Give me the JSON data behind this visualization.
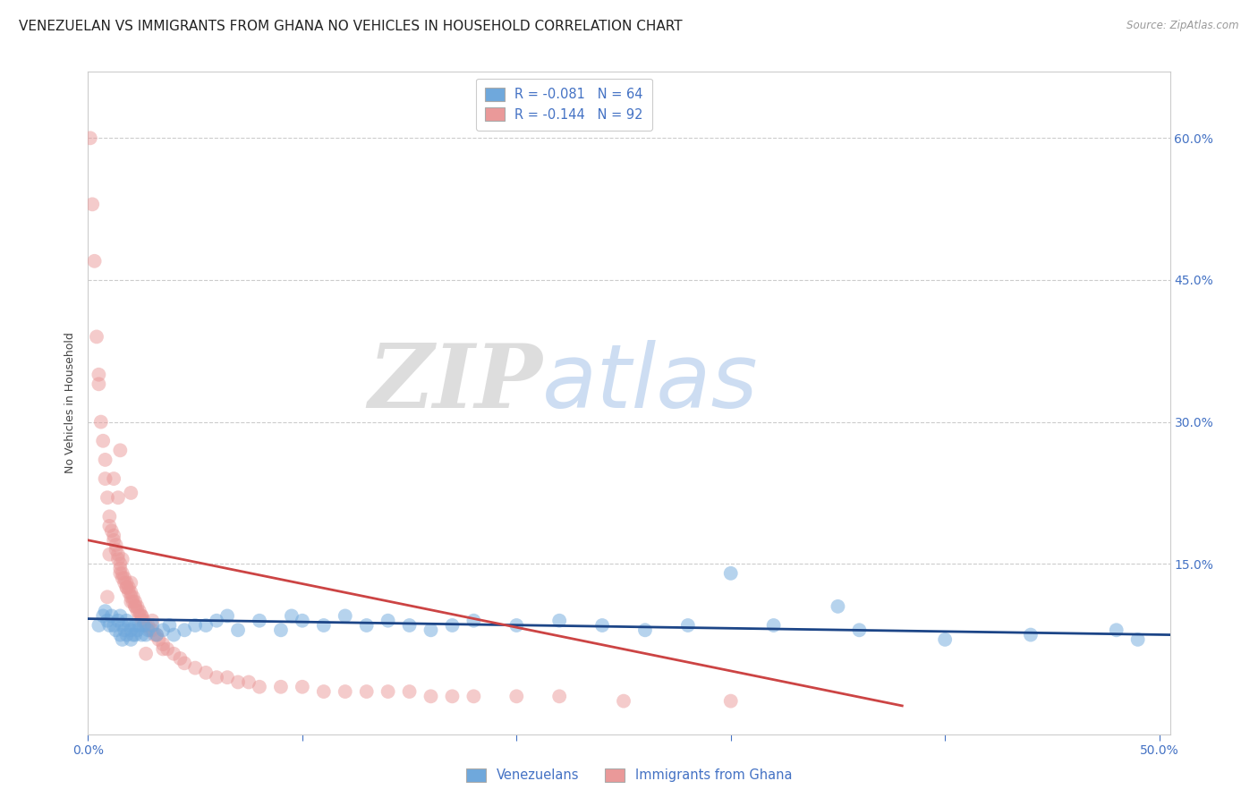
{
  "title": "VENEZUELAN VS IMMIGRANTS FROM GHANA NO VEHICLES IN HOUSEHOLD CORRELATION CHART",
  "source": "Source: ZipAtlas.com",
  "ylabel_left": "No Vehicles in Household",
  "xlim": [
    0.0,
    0.505
  ],
  "ylim": [
    -0.03,
    0.67
  ],
  "ytick_positions": [
    0.0,
    0.15,
    0.3,
    0.45,
    0.6
  ],
  "ytick_labels_right": [
    "",
    "15.0%",
    "30.0%",
    "45.0%",
    "60.0%"
  ],
  "xtick_positions": [
    0.0,
    0.1,
    0.2,
    0.3,
    0.4,
    0.5
  ],
  "xtick_labels": [
    "0.0%",
    "",
    "",
    "",
    "",
    "50.0%"
  ],
  "blue_color": "#6fa8dc",
  "pink_color": "#ea9999",
  "blue_line_color": "#1c4587",
  "pink_line_color": "#cc4444",
  "legend_r_blue": "R = -0.081",
  "legend_n_blue": "N = 64",
  "legend_r_pink": "R = -0.144",
  "legend_n_pink": "N = 92",
  "label_blue": "Venezuelans",
  "label_pink": "Immigrants from Ghana",
  "title_color": "#222222",
  "axis_color": "#4472c4",
  "watermark_zip": "ZIP",
  "watermark_atlas": "atlas",
  "blue_scatter_x": [
    0.005,
    0.007,
    0.008,
    0.009,
    0.01,
    0.011,
    0.012,
    0.013,
    0.014,
    0.015,
    0.015,
    0.016,
    0.016,
    0.017,
    0.018,
    0.018,
    0.019,
    0.02,
    0.02,
    0.021,
    0.022,
    0.022,
    0.023,
    0.024,
    0.025,
    0.026,
    0.027,
    0.028,
    0.03,
    0.032,
    0.035,
    0.038,
    0.04,
    0.045,
    0.05,
    0.055,
    0.06,
    0.065,
    0.07,
    0.08,
    0.09,
    0.095,
    0.1,
    0.11,
    0.12,
    0.13,
    0.14,
    0.15,
    0.16,
    0.17,
    0.18,
    0.2,
    0.22,
    0.24,
    0.26,
    0.28,
    0.32,
    0.36,
    0.4,
    0.44,
    0.48,
    0.49,
    0.35,
    0.3
  ],
  "blue_scatter_y": [
    0.085,
    0.095,
    0.1,
    0.09,
    0.085,
    0.095,
    0.085,
    0.08,
    0.09,
    0.095,
    0.075,
    0.085,
    0.07,
    0.08,
    0.09,
    0.075,
    0.085,
    0.08,
    0.07,
    0.075,
    0.085,
    0.075,
    0.08,
    0.085,
    0.075,
    0.085,
    0.075,
    0.08,
    0.085,
    0.075,
    0.08,
    0.085,
    0.075,
    0.08,
    0.085,
    0.085,
    0.09,
    0.095,
    0.08,
    0.09,
    0.08,
    0.095,
    0.09,
    0.085,
    0.095,
    0.085,
    0.09,
    0.085,
    0.08,
    0.085,
    0.09,
    0.085,
    0.09,
    0.085,
    0.08,
    0.085,
    0.085,
    0.08,
    0.07,
    0.075,
    0.08,
    0.07,
    0.105,
    0.14
  ],
  "pink_scatter_x": [
    0.001,
    0.002,
    0.003,
    0.004,
    0.005,
    0.005,
    0.006,
    0.007,
    0.008,
    0.008,
    0.009,
    0.01,
    0.01,
    0.011,
    0.012,
    0.012,
    0.013,
    0.013,
    0.014,
    0.014,
    0.015,
    0.015,
    0.015,
    0.016,
    0.016,
    0.017,
    0.017,
    0.018,
    0.018,
    0.019,
    0.019,
    0.02,
    0.02,
    0.02,
    0.021,
    0.021,
    0.022,
    0.022,
    0.023,
    0.023,
    0.024,
    0.024,
    0.025,
    0.025,
    0.026,
    0.027,
    0.028,
    0.029,
    0.03,
    0.031,
    0.032,
    0.033,
    0.035,
    0.037,
    0.04,
    0.043,
    0.045,
    0.05,
    0.055,
    0.06,
    0.065,
    0.07,
    0.075,
    0.08,
    0.09,
    0.1,
    0.11,
    0.12,
    0.13,
    0.14,
    0.15,
    0.16,
    0.17,
    0.18,
    0.2,
    0.22,
    0.25,
    0.3,
    0.012,
    0.014,
    0.01,
    0.016,
    0.02,
    0.018,
    0.009,
    0.022,
    0.025,
    0.03,
    0.035,
    0.027,
    0.015,
    0.02
  ],
  "pink_scatter_y": [
    0.6,
    0.53,
    0.47,
    0.39,
    0.35,
    0.34,
    0.3,
    0.28,
    0.26,
    0.24,
    0.22,
    0.2,
    0.19,
    0.185,
    0.18,
    0.175,
    0.17,
    0.165,
    0.16,
    0.155,
    0.15,
    0.145,
    0.14,
    0.14,
    0.135,
    0.135,
    0.13,
    0.13,
    0.125,
    0.125,
    0.12,
    0.12,
    0.115,
    0.11,
    0.115,
    0.11,
    0.11,
    0.105,
    0.105,
    0.1,
    0.1,
    0.095,
    0.095,
    0.09,
    0.09,
    0.085,
    0.085,
    0.08,
    0.08,
    0.075,
    0.075,
    0.07,
    0.065,
    0.06,
    0.055,
    0.05,
    0.045,
    0.04,
    0.035,
    0.03,
    0.03,
    0.025,
    0.025,
    0.02,
    0.02,
    0.02,
    0.015,
    0.015,
    0.015,
    0.015,
    0.015,
    0.01,
    0.01,
    0.01,
    0.01,
    0.01,
    0.005,
    0.005,
    0.24,
    0.22,
    0.16,
    0.155,
    0.13,
    0.125,
    0.115,
    0.105,
    0.095,
    0.09,
    0.06,
    0.055,
    0.27,
    0.225
  ],
  "blue_line_x": [
    0.0,
    0.505
  ],
  "blue_line_y": [
    0.092,
    0.075
  ],
  "pink_line_x": [
    0.0,
    0.38
  ],
  "pink_line_y": [
    0.175,
    0.0
  ],
  "background_color": "#ffffff",
  "grid_color": "#cccccc",
  "title_fontsize": 11,
  "label_fontsize": 9,
  "tick_fontsize": 10,
  "legend_fontsize": 10.5
}
